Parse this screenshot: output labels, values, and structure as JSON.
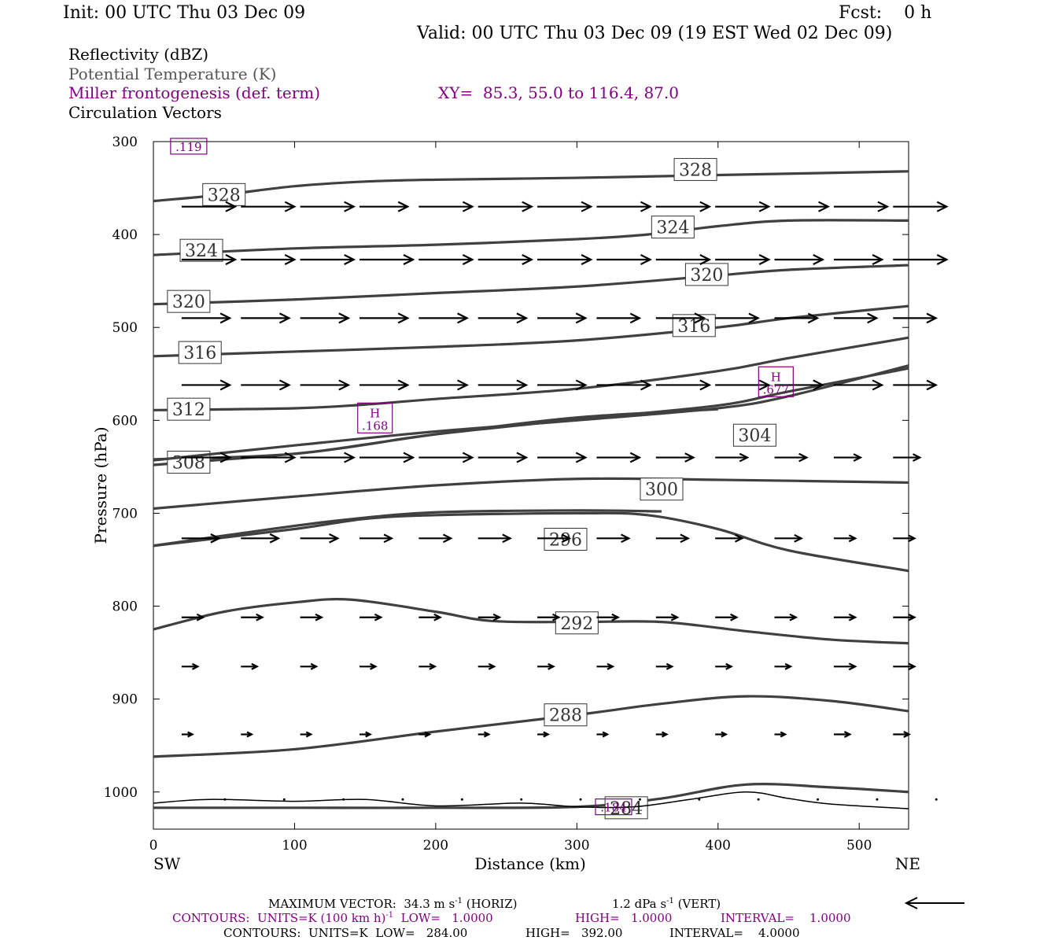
{
  "header": {
    "init": "Init: 00 UTC Thu 03 Dec 09",
    "fcst": "Fcst:    0 h",
    "valid": "Valid: 00 UTC Thu 03 Dec 09 (19 EST Wed 02 Dec 09)",
    "field1": "Reflectivity (dBZ)",
    "field2": "Potential Temperature (K)",
    "field3": "Miller frontogenesis (def. term)",
    "xy": "XY=  85.3, 55.0 to 116.4, 87.0",
    "field4": "Circulation Vectors"
  },
  "footer": {
    "max_vector_a": "MAXIMUM VECTOR:  34.3 m s",
    "max_vector_a_exp": "-1",
    "max_vector_b": " (HORIZ)",
    "max_vector_c": "1.2 dPa s",
    "max_vector_c_exp": "-1",
    "max_vector_d": " (VERT)",
    "contours1_a": "CONTOURS:  UNITS=K (100 km h)",
    "contours1_exp": "-1",
    "contours1_b": "  LOW=   1.0000",
    "contours1_c": "HIGH=   1.0000",
    "contours1_d": "INTERVAL=    1.0000",
    "contours2_a": "CONTOURS:  UNITS=K  LOW=   284.00",
    "contours2_c": "HIGH=   392.00",
    "contours2_d": "INTERVAL=    4.0000"
  },
  "colors": {
    "theta": "#404040",
    "frontogenesis": "#800080",
    "vectors": "#000000"
  },
  "chart_data": {
    "type": "line",
    "xlabel": "Distance (km)",
    "ylabel": "Pressure (hPa)",
    "xlim": [
      0,
      535
    ],
    "ylim": [
      1040,
      300
    ],
    "y_log_scale": false,
    "xticks": [
      0,
      100,
      200,
      300,
      400,
      500
    ],
    "yticks": [
      300,
      400,
      500,
      600,
      700,
      800,
      900,
      1000
    ],
    "left_end_label": "SW",
    "right_end_label": "NE",
    "theta_contours": [
      {
        "level": "328",
        "label_at": [
          384,
          330
        ],
        "label2_at": [
          50,
          357
        ],
        "points": [
          [
            0,
            364
          ],
          [
            50,
            357
          ],
          [
            100,
            348
          ],
          [
            150,
            343
          ],
          [
            200,
            341
          ],
          [
            300,
            339
          ],
          [
            400,
            336
          ],
          [
            535,
            332
          ]
        ]
      },
      {
        "level": "324",
        "label_at": [
          368,
          392
        ],
        "label2_at": [
          34,
          417
        ],
        "points": [
          [
            0,
            422
          ],
          [
            100,
            415
          ],
          [
            200,
            411
          ],
          [
            300,
            405
          ],
          [
            350,
            400
          ],
          [
            400,
            391
          ],
          [
            450,
            385
          ],
          [
            535,
            385
          ]
        ]
      },
      {
        "level": "320",
        "label_at": [
          392,
          443
        ],
        "label2_at": [
          25,
          472
        ],
        "points": [
          [
            0,
            475
          ],
          [
            100,
            470
          ],
          [
            200,
            463
          ],
          [
            300,
            456
          ],
          [
            400,
            444
          ],
          [
            450,
            438
          ],
          [
            535,
            433
          ]
        ]
      },
      {
        "level": "316",
        "label_at": [
          383,
          498
        ],
        "label2_at": [
          33,
          527
        ],
        "points": [
          [
            0,
            531
          ],
          [
            100,
            526
          ],
          [
            200,
            521
          ],
          [
            300,
            514
          ],
          [
            400,
            500
          ],
          [
            450,
            490
          ],
          [
            535,
            477
          ]
        ]
      },
      {
        "level": "312",
        "label_at": [
          25,
          588
        ],
        "points": [
          [
            0,
            589
          ],
          [
            100,
            587
          ],
          [
            150,
            583
          ],
          [
            200,
            577
          ],
          [
            300,
            566
          ],
          [
            400,
            547
          ],
          [
            450,
            533
          ],
          [
            535,
            511
          ]
        ]
      },
      {
        "level": "304",
        "label_at": [
          426,
          616
        ],
        "points": [
          [
            0,
            648
          ],
          [
            100,
            636
          ],
          [
            150,
            626
          ],
          [
            200,
            615
          ],
          [
            300,
            599
          ],
          [
            400,
            584
          ],
          [
            450,
            569
          ],
          [
            535,
            544
          ]
        ]
      },
      {
        "level": "308",
        "label_at": [
          25,
          645
        ],
        "points": [
          [
            0,
            642
          ],
          [
            100,
            636
          ],
          [
            200,
            615
          ],
          [
            300,
            597
          ],
          [
            400,
            588
          ]
        ]
      },
      {
        "level": "300",
        "label_at": [
          360,
          674
        ],
        "points": [
          [
            0,
            695
          ],
          [
            100,
            682
          ],
          [
            200,
            670
          ],
          [
            300,
            663
          ],
          [
            400,
            664
          ],
          [
            535,
            667
          ]
        ]
      },
      {
        "level": "304b",
        "hidden_label": true,
        "points": [
          [
            0,
            643
          ],
          [
            100,
            627
          ],
          [
            200,
            612
          ],
          [
            300,
            600
          ],
          [
            400,
            587
          ],
          [
            450,
            574
          ],
          [
            535,
            541
          ]
        ]
      },
      {
        "level": "296",
        "label_at": [
          292,
          728
        ],
        "points": [
          [
            0,
            735
          ],
          [
            100,
            717
          ],
          [
            150,
            706
          ],
          [
            200,
            702
          ],
          [
            300,
            700
          ],
          [
            350,
            702
          ],
          [
            400,
            717
          ],
          [
            450,
            740
          ],
          [
            535,
            762
          ]
        ]
      },
      {
        "level": "300b",
        "hidden_label": true,
        "points": [
          [
            0,
            735
          ],
          [
            60,
            722
          ],
          [
            130,
            708
          ],
          [
            200,
            699
          ],
          [
            300,
            697
          ],
          [
            360,
            698
          ]
        ]
      },
      {
        "level": "292",
        "label_at": [
          300,
          818
        ],
        "points": [
          [
            0,
            825
          ],
          [
            50,
            806
          ],
          [
            100,
            796
          ],
          [
            140,
            793
          ],
          [
            200,
            806
          ],
          [
            240,
            816
          ],
          [
            300,
            817
          ],
          [
            360,
            817
          ],
          [
            420,
            827
          ],
          [
            480,
            836
          ],
          [
            535,
            840
          ]
        ]
      },
      {
        "level": "288",
        "label_at": [
          292,
          917
        ],
        "points": [
          [
            0,
            962
          ],
          [
            100,
            954
          ],
          [
            200,
            935
          ],
          [
            300,
            917
          ],
          [
            360,
            905
          ],
          [
            420,
            897
          ],
          [
            480,
            902
          ],
          [
            535,
            913
          ]
        ]
      },
      {
        "level": "284",
        "label_at": [
          335,
          1017
        ],
        "points": [
          [
            0,
            1017
          ],
          [
            100,
            1017
          ],
          [
            200,
            1017
          ],
          [
            300,
            1016
          ],
          [
            360,
            1007
          ],
          [
            420,
            992
          ],
          [
            480,
            995
          ],
          [
            535,
            1000
          ]
        ]
      },
      {
        "level": "terrain",
        "hidden_label": true,
        "points": [
          [
            0,
            1012
          ],
          [
            40,
            1008
          ],
          [
            100,
            1010
          ],
          [
            150,
            1008
          ],
          [
            200,
            1015
          ],
          [
            260,
            1012
          ],
          [
            300,
            1016
          ],
          [
            340,
            1016
          ],
          [
            380,
            1008
          ],
          [
            420,
            1000
          ],
          [
            450,
            1007
          ],
          [
            480,
            1013
          ],
          [
            535,
            1018
          ]
        ]
      }
    ],
    "frontogenesis_maxima": [
      {
        "label": ".119",
        "at": [
          25,
          305
        ]
      },
      {
        "label": "H",
        "value": ".168",
        "at": [
          157,
          600
        ]
      },
      {
        "label": "H",
        "value": ".677",
        "at": [
          441,
          561
        ]
      },
      {
        "label": ".184",
        "at": [
          326,
          1016
        ]
      }
    ],
    "vector_rows": [
      {
        "p": 370,
        "vals": [
          1.0,
          1.0,
          1.0,
          0.9,
          1.0,
          1.0,
          1.0,
          1.0,
          1.0,
          1.0,
          1.0,
          1.0,
          1.0,
          0.9
        ]
      },
      {
        "p": 427,
        "vals": [
          1.0,
          1.0,
          1.0,
          1.0,
          1.0,
          1.0,
          1.0,
          1.0,
          1.0,
          1.0,
          0.9,
          0.9,
          1.0,
          0.9
        ]
      },
      {
        "p": 490,
        "vals": [
          0.9,
          0.9,
          0.9,
          0.9,
          0.9,
          0.9,
          0.9,
          0.8,
          0.9,
          0.8,
          0.8,
          0.8,
          0.8,
          0.8
        ]
      },
      {
        "p": 562,
        "vals": [
          0.9,
          0.9,
          0.9,
          0.9,
          0.9,
          0.9,
          0.9,
          1.0,
          1.0,
          1.0,
          0.9,
          0.9,
          0.8,
          0.7
        ]
      },
      {
        "p": 640,
        "vals": [
          0.9,
          1.0,
          1.0,
          1.0,
          1.0,
          0.9,
          0.9,
          0.8,
          0.7,
          0.6,
          0.6,
          0.5,
          0.5,
          0.4
        ]
      },
      {
        "p": 727,
        "vals": [
          0.7,
          0.7,
          0.7,
          0.6,
          0.6,
          0.6,
          0.6,
          0.6,
          0.6,
          0.5,
          0.5,
          0.4,
          0.4,
          0.4
        ]
      },
      {
        "p": 812,
        "vals": [
          0.4,
          0.4,
          0.4,
          0.4,
          0.4,
          0.4,
          0.4,
          0.4,
          0.4,
          0.4,
          0.4,
          0.4,
          0.4,
          0.4
        ]
      },
      {
        "p": 865,
        "vals": [
          0.3,
          0.3,
          0.3,
          0.3,
          0.3,
          0.3,
          0.3,
          0.3,
          0.3,
          0.3,
          0.3,
          0.4,
          0.4,
          0.4
        ]
      },
      {
        "p": 938,
        "vals": [
          0.2,
          0.2,
          0.2,
          0.2,
          0.2,
          0.2,
          0.2,
          0.2,
          0.2,
          0.2,
          0.2,
          0.3,
          0.3,
          0.3
        ]
      },
      {
        "p": 1008,
        "vals": [
          0.0,
          0.0,
          0.0,
          0.0,
          0.0,
          0.0,
          0.0,
          0.0,
          0.0,
          0.0,
          0.0,
          0.0,
          0.0,
          0.0
        ]
      }
    ],
    "vector_x": [
      20,
      62,
      104,
      146,
      188,
      230,
      272,
      314,
      356,
      398,
      440,
      482,
      524,
      535
    ]
  }
}
